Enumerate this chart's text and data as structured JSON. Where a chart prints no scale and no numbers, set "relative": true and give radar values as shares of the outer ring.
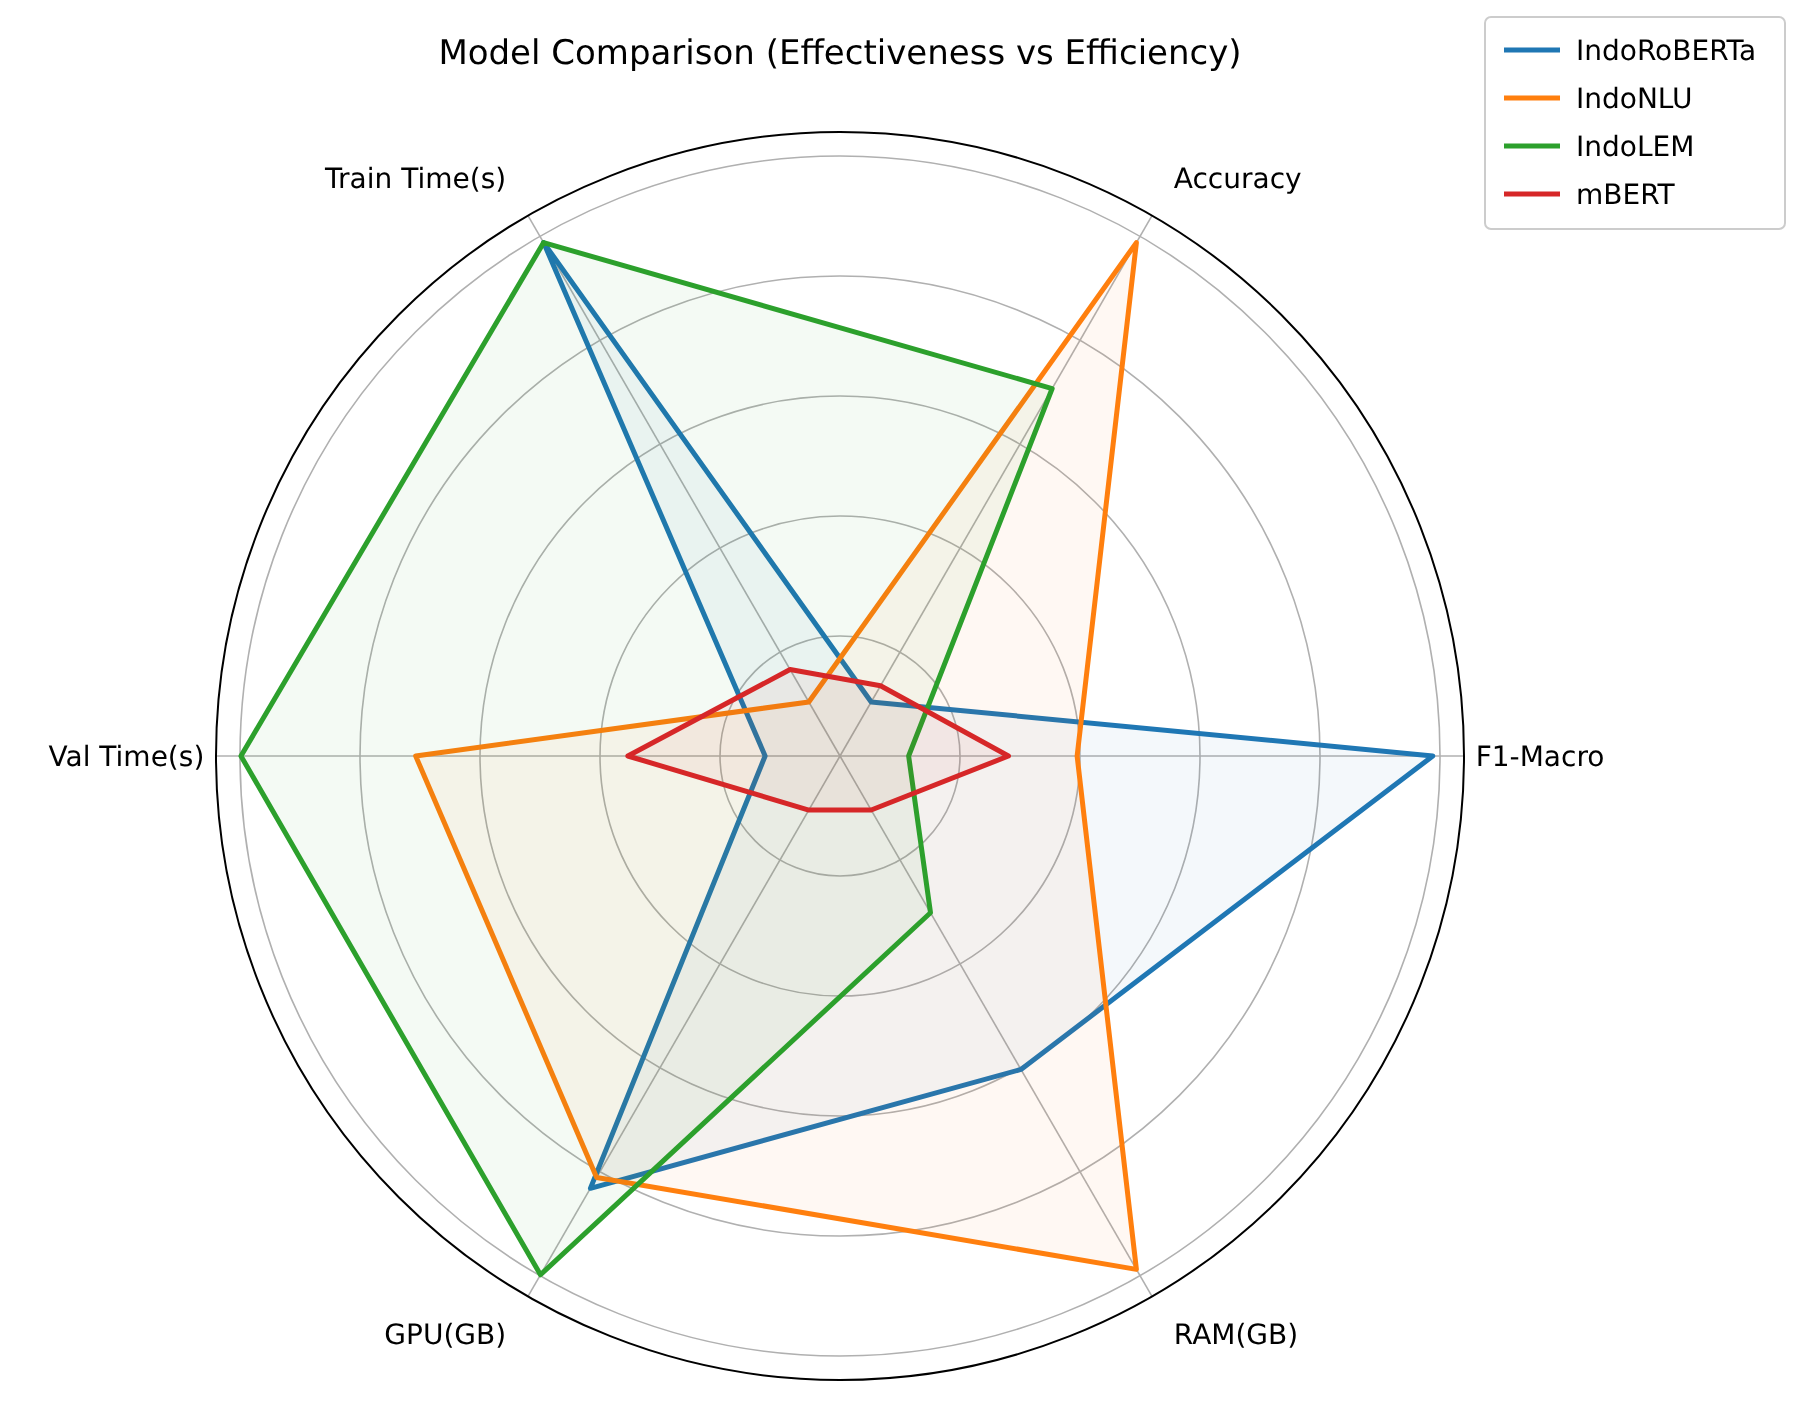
{
  "chart_data": {
    "type": "radar",
    "title": "Model Comparison (Effectiveness vs Efficiency)",
    "relative": true,
    "grid": true,
    "legend": "top right",
    "categories": [
      "Accuracy",
      "F1-Macro",
      "RAM(GB)",
      "GPU(GB)",
      "Val Time(s)",
      "Train Time(s)"
    ],
    "series": [
      {
        "name": "IndoRoBERTa",
        "color": "#1f77b4",
        "values": [
          0.1,
          0.95,
          0.58,
          0.8,
          0.12,
          0.95
        ]
      },
      {
        "name": "IndoNLU",
        "color": "#ff7f0e",
        "values": [
          0.95,
          0.38,
          0.95,
          0.78,
          0.68,
          0.1
        ]
      },
      {
        "name": "IndoLEM",
        "color": "#2ca02c",
        "values": [
          0.68,
          0.11,
          0.29,
          0.96,
          0.96,
          0.95
        ]
      },
      {
        "name": "mBERT",
        "color": "#d62728",
        "values": [
          0.13,
          0.27,
          0.1,
          0.1,
          0.34,
          0.16
        ]
      }
    ]
  }
}
